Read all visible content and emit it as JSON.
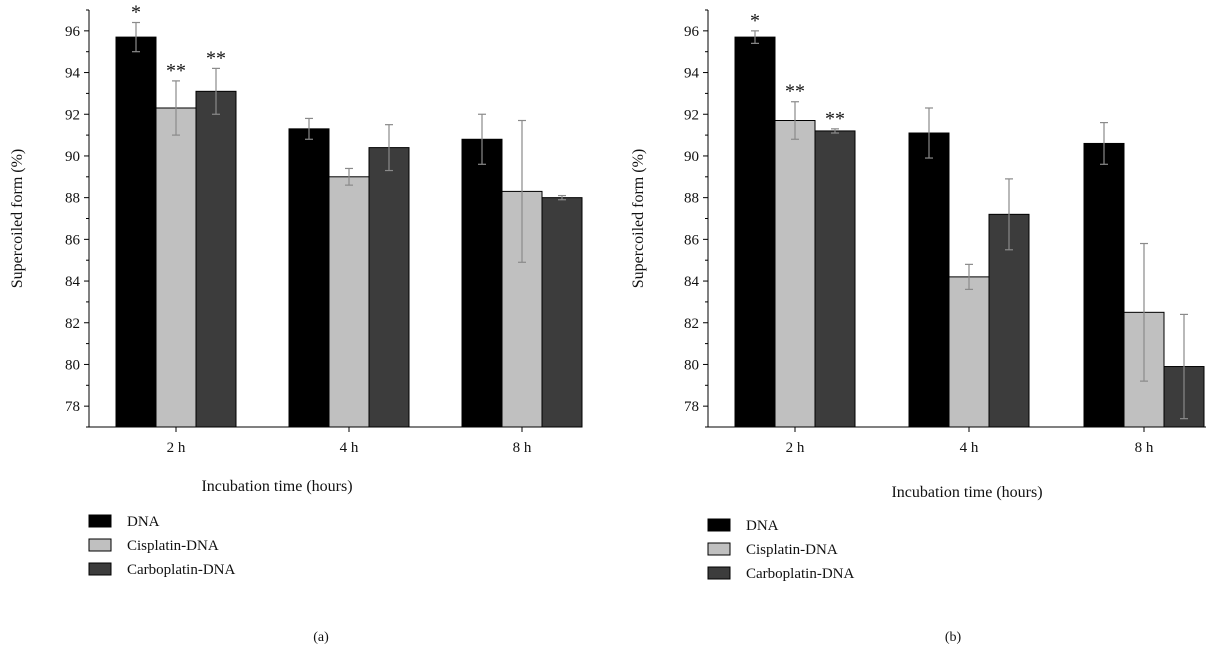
{
  "figure": {
    "colors": {
      "DNA": "#000000",
      "Cisplatin-DNA": "#c0c0c0",
      "Carboplatin-DNA": "#3c3c3c",
      "errorbar": "#8a8a8a",
      "axis": "#000000"
    }
  },
  "chart_data": [
    {
      "type": "bar",
      "panel_label": "(a)",
      "xlabel": "Incubation time (hours)",
      "ylabel": "Supercoiled form (%)",
      "ylim": [
        77,
        97
      ],
      "yticks": [
        78,
        80,
        82,
        84,
        86,
        88,
        90,
        92,
        94,
        96
      ],
      "categories": [
        "2 h",
        "4 h",
        "8 h"
      ],
      "grid": false,
      "legend_position": "below",
      "series": [
        {
          "name": "DNA",
          "values": [
            95.7,
            91.3,
            90.8
          ],
          "errors": [
            0.7,
            0.5,
            1.2
          ],
          "annotations": [
            "*",
            "",
            ""
          ]
        },
        {
          "name": "Cisplatin-DNA",
          "values": [
            92.3,
            89.0,
            88.3
          ],
          "errors": [
            1.3,
            0.4,
            3.4
          ],
          "annotations": [
            "**",
            "",
            ""
          ]
        },
        {
          "name": "Carboplatin-DNA",
          "values": [
            93.1,
            90.4,
            88.0
          ],
          "errors": [
            1.1,
            1.1,
            0.1
          ],
          "annotations": [
            "**",
            "",
            ""
          ]
        }
      ]
    },
    {
      "type": "bar",
      "panel_label": "(b)",
      "xlabel": "Incubation time (hours)",
      "ylabel": "Supercoiled form (%)",
      "ylim": [
        77,
        97
      ],
      "yticks": [
        78,
        80,
        82,
        84,
        86,
        88,
        90,
        92,
        94,
        96
      ],
      "categories": [
        "2 h",
        "4 h",
        "8 h"
      ],
      "grid": false,
      "legend_position": "below",
      "series": [
        {
          "name": "DNA",
          "values": [
            95.7,
            91.1,
            90.6
          ],
          "errors": [
            0.3,
            1.2,
            1.0
          ],
          "annotations": [
            "*",
            "",
            ""
          ]
        },
        {
          "name": "Cisplatin-DNA",
          "values": [
            91.7,
            84.2,
            82.5
          ],
          "errors": [
            0.9,
            0.6,
            3.3
          ],
          "annotations": [
            "**",
            "",
            ""
          ]
        },
        {
          "name": "Carboplatin-DNA",
          "values": [
            91.2,
            87.2,
            79.9
          ],
          "errors": [
            0.1,
            1.7,
            2.5
          ],
          "annotations": [
            "**",
            "",
            ""
          ]
        }
      ]
    }
  ]
}
